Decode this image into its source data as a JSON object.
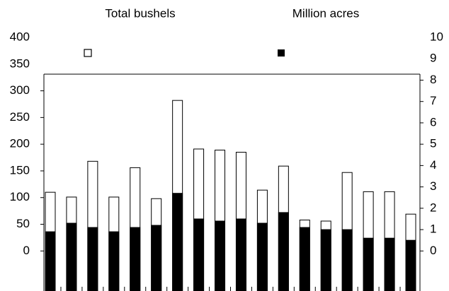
{
  "chart_data": {
    "type": "bar",
    "categories": [
      null,
      null,
      null,
      null,
      null,
      null,
      null,
      null,
      null,
      null,
      null,
      null,
      null,
      null,
      null,
      null,
      null,
      null
    ],
    "series": [
      {
        "name": "Total bushels",
        "color": "#ffffff",
        "values": [
          110,
          101,
          168,
          101,
          156,
          98,
          282,
          191,
          189,
          185,
          114,
          159,
          58,
          56,
          147,
          111,
          111,
          69
        ]
      },
      {
        "name": "Million acres",
        "color": "#000000",
        "axis": "y2",
        "values": [
          0.9,
          1.3,
          1.1,
          0.9,
          1.1,
          1.2,
          2.7,
          1.5,
          1.4,
          1.5,
          1.3,
          1.8,
          1.1,
          1.0,
          1.0,
          0.6,
          0.6,
          0.5
        ]
      }
    ],
    "ylim": [
      -75,
      400
    ],
    "yticks": [
      0,
      50,
      100,
      150,
      200,
      250,
      300,
      350,
      400
    ],
    "y2lim": [
      -1.875,
      10
    ],
    "y2ticks": [
      0,
      1,
      2,
      3,
      4,
      5,
      6,
      7,
      8,
      9,
      10
    ]
  }
}
